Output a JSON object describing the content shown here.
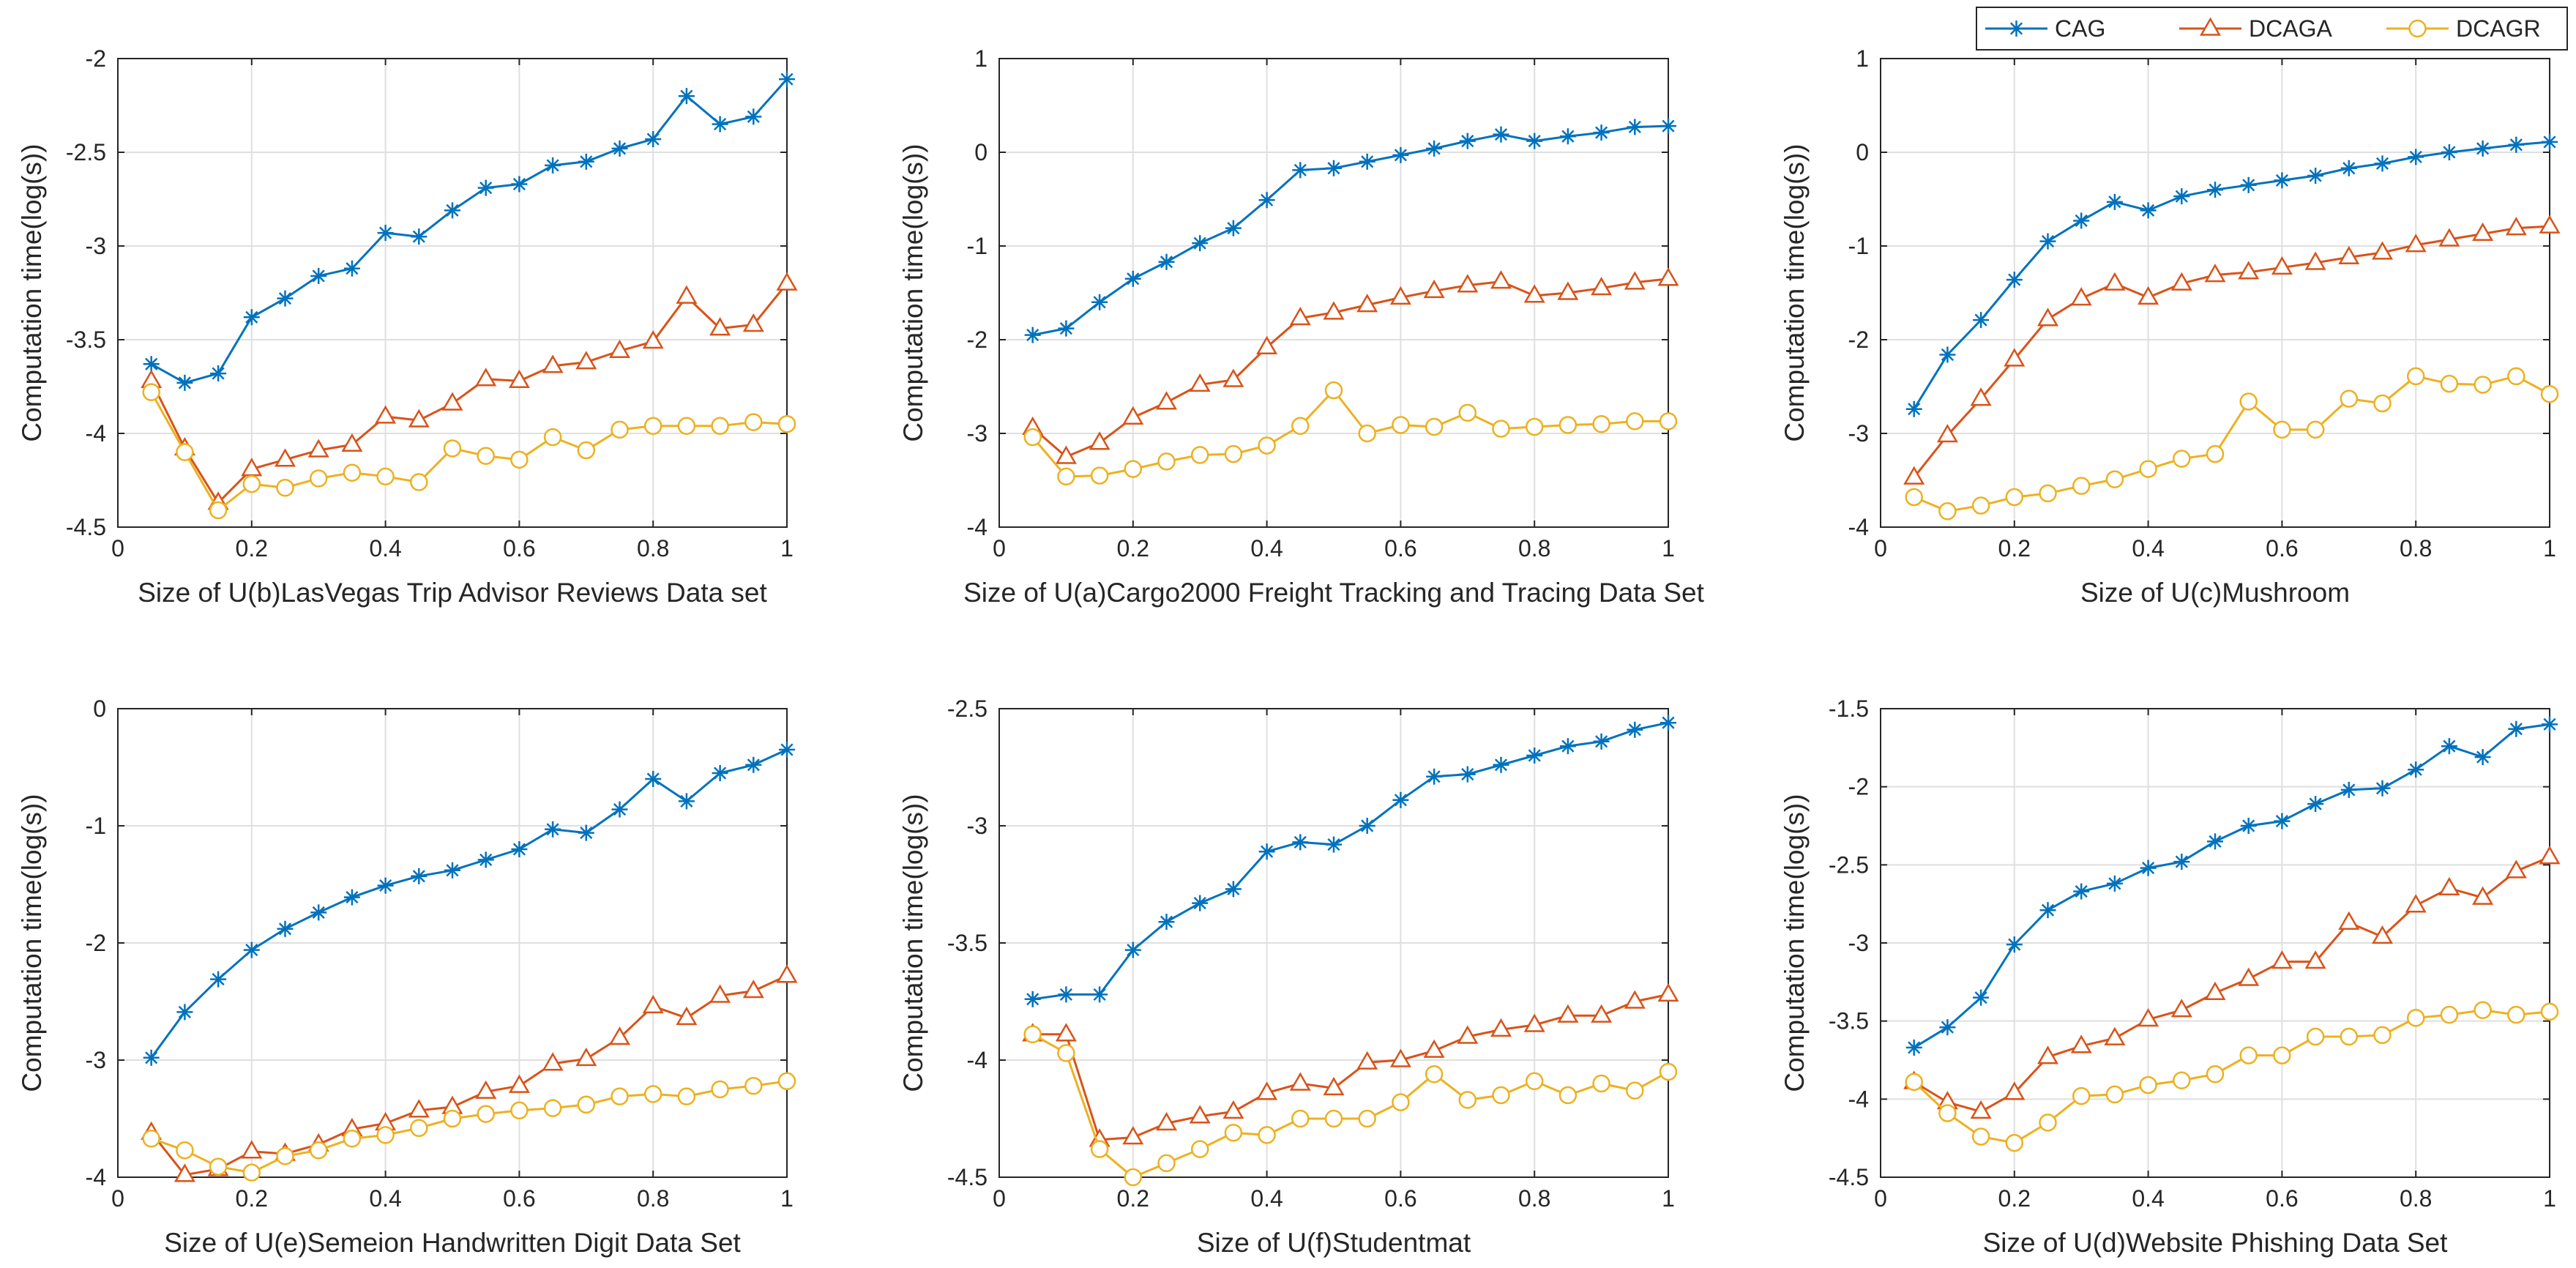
{
  "legend": {
    "entries": [
      {
        "name": "CAG",
        "color": "#0072BD",
        "marker": "asterisk"
      },
      {
        "name": "DCAGA",
        "color": "#D95319",
        "marker": "triangle"
      },
      {
        "name": "DCAGR",
        "color": "#EDB120",
        "marker": "circle"
      }
    ],
    "placement": "top-right"
  },
  "chart_data": [
    {
      "type": "line",
      "xlabel": "Size of U(b)LasVegas Trip Advisor Reviews Data set",
      "ylabel": "Computation time(log(s))",
      "xlim": [
        0,
        1
      ],
      "ylim": [
        -4.5,
        -2
      ],
      "xticks": [
        0,
        0.2,
        0.4,
        0.6,
        0.8,
        1
      ],
      "xtick_labels": [
        "0",
        "0.2",
        "0.4",
        "0.6",
        "0.8",
        "1"
      ],
      "yticks": [
        -4.5,
        -4,
        -3.5,
        -3,
        -2.5,
        -2
      ],
      "ytick_labels": [
        "-4.5",
        "-4",
        "-3.5",
        "-3",
        "-2.5",
        "-2"
      ],
      "x": [
        0.05,
        0.1,
        0.15,
        0.2,
        0.25,
        0.3,
        0.35,
        0.4,
        0.45,
        0.5,
        0.55,
        0.6,
        0.65,
        0.7,
        0.75,
        0.8,
        0.85,
        0.9,
        0.95,
        1.0
      ],
      "series": [
        {
          "name": "CAG",
          "values": [
            -3.63,
            -3.73,
            -3.68,
            -3.38,
            -3.28,
            -3.16,
            -3.12,
            -2.93,
            -2.95,
            -2.81,
            -2.69,
            -2.67,
            -2.57,
            -2.55,
            -2.48,
            -2.43,
            -2.2,
            -2.35,
            -2.31,
            -2.11
          ]
        },
        {
          "name": "DCAGA",
          "values": [
            -3.72,
            -4.08,
            -4.37,
            -4.19,
            -4.14,
            -4.09,
            -4.06,
            -3.91,
            -3.93,
            -3.84,
            -3.71,
            -3.72,
            -3.64,
            -3.62,
            -3.56,
            -3.51,
            -3.27,
            -3.44,
            -3.42,
            -3.2
          ]
        },
        {
          "name": "DCAGR",
          "values": [
            -3.78,
            -4.1,
            -4.41,
            -4.27,
            -4.29,
            -4.24,
            -4.21,
            -4.23,
            -4.26,
            -4.08,
            -4.12,
            -4.14,
            -4.02,
            -4.09,
            -3.98,
            -3.96,
            -3.96,
            -3.96,
            -3.94,
            -3.95
          ]
        }
      ]
    },
    {
      "type": "line",
      "xlabel": "Size of U(a)Cargo2000 Freight Tracking and Tracing Data Set",
      "ylabel": "Computation time(log(s))",
      "xlim": [
        0,
        1
      ],
      "ylim": [
        -4,
        1
      ],
      "xticks": [
        0,
        0.2,
        0.4,
        0.6,
        0.8,
        1
      ],
      "xtick_labels": [
        "0",
        "0.2",
        "0.4",
        "0.6",
        "0.8",
        "1"
      ],
      "yticks": [
        -4,
        -3,
        -2,
        -1,
        0,
        1
      ],
      "ytick_labels": [
        "-4",
        "-3",
        "-2",
        "-1",
        "0",
        "1"
      ],
      "x": [
        0.05,
        0.1,
        0.15,
        0.2,
        0.25,
        0.3,
        0.35,
        0.4,
        0.45,
        0.5,
        0.55,
        0.6,
        0.65,
        0.7,
        0.75,
        0.8,
        0.85,
        0.9,
        0.95,
        1.0
      ],
      "series": [
        {
          "name": "CAG",
          "values": [
            -1.95,
            -1.88,
            -1.6,
            -1.35,
            -1.17,
            -0.97,
            -0.81,
            -0.51,
            -0.19,
            -0.17,
            -0.1,
            -0.03,
            0.04,
            0.12,
            0.19,
            0.12,
            0.17,
            0.21,
            0.27,
            0.28
          ]
        },
        {
          "name": "DCAGA",
          "values": [
            -2.94,
            -3.25,
            -3.1,
            -2.83,
            -2.67,
            -2.48,
            -2.43,
            -2.08,
            -1.77,
            -1.71,
            -1.63,
            -1.55,
            -1.48,
            -1.42,
            -1.38,
            -1.53,
            -1.5,
            -1.45,
            -1.39,
            -1.35
          ]
        },
        {
          "name": "DCAGR",
          "values": [
            -3.04,
            -3.46,
            -3.45,
            -3.38,
            -3.3,
            -3.23,
            -3.22,
            -3.13,
            -2.92,
            -2.54,
            -3.0,
            -2.91,
            -2.93,
            -2.78,
            -2.95,
            -2.93,
            -2.91,
            -2.9,
            -2.87,
            -2.87
          ]
        }
      ]
    },
    {
      "type": "line",
      "xlabel": "Size of U(c)Mushroom",
      "ylabel": "Computation time(log(s))",
      "xlim": [
        0,
        1
      ],
      "ylim": [
        -4,
        1
      ],
      "xticks": [
        0,
        0.2,
        0.4,
        0.6,
        0.8,
        1
      ],
      "xtick_labels": [
        "0",
        "0.2",
        "0.4",
        "0.6",
        "0.8",
        "1"
      ],
      "yticks": [
        -4,
        -3,
        -2,
        -1,
        0,
        1
      ],
      "ytick_labels": [
        "-4",
        "-3",
        "-2",
        "-1",
        "0",
        "1"
      ],
      "x": [
        0.05,
        0.1,
        0.15,
        0.2,
        0.25,
        0.3,
        0.35,
        0.4,
        0.45,
        0.5,
        0.55,
        0.6,
        0.65,
        0.7,
        0.75,
        0.8,
        0.85,
        0.9,
        0.95,
        1.0
      ],
      "series": [
        {
          "name": "CAG",
          "values": [
            -2.74,
            -2.16,
            -1.79,
            -1.36,
            -0.95,
            -0.73,
            -0.53,
            -0.62,
            -0.47,
            -0.4,
            -0.35,
            -0.3,
            -0.25,
            -0.17,
            -0.12,
            -0.05,
            0.0,
            0.04,
            0.08,
            0.11
          ]
        },
        {
          "name": "DCAGA",
          "values": [
            -3.47,
            -3.02,
            -2.63,
            -2.21,
            -1.78,
            -1.56,
            -1.4,
            -1.55,
            -1.4,
            -1.31,
            -1.28,
            -1.23,
            -1.18,
            -1.12,
            -1.07,
            -0.99,
            -0.93,
            -0.87,
            -0.81,
            -0.79
          ]
        },
        {
          "name": "DCAGR",
          "values": [
            -3.68,
            -3.83,
            -3.77,
            -3.68,
            -3.64,
            -3.56,
            -3.49,
            -3.38,
            -3.27,
            -3.22,
            -2.66,
            -2.96,
            -2.96,
            -2.63,
            -2.68,
            -2.39,
            -2.47,
            -2.48,
            -2.39,
            -2.58
          ]
        }
      ]
    },
    {
      "type": "line",
      "xlabel": "Size of U(e)Semeion Handwritten Digit Data Set",
      "ylabel": "Computation time(log(s))",
      "xlim": [
        0,
        1
      ],
      "ylim": [
        -4,
        0
      ],
      "xticks": [
        0,
        0.2,
        0.4,
        0.6,
        0.8,
        1
      ],
      "xtick_labels": [
        "0",
        "0.2",
        "0.4",
        "0.6",
        "0.8",
        "1"
      ],
      "yticks": [
        -4,
        -3,
        -2,
        -1,
        0
      ],
      "ytick_labels": [
        "-4",
        "-3",
        "-2",
        "-1",
        "0"
      ],
      "x": [
        0.05,
        0.1,
        0.15,
        0.2,
        0.25,
        0.3,
        0.35,
        0.4,
        0.45,
        0.5,
        0.55,
        0.6,
        0.65,
        0.7,
        0.75,
        0.8,
        0.85,
        0.9,
        0.95,
        1.0
      ],
      "series": [
        {
          "name": "CAG",
          "values": [
            -2.98,
            -2.59,
            -2.31,
            -2.06,
            -1.88,
            -1.74,
            -1.61,
            -1.51,
            -1.43,
            -1.38,
            -1.29,
            -1.2,
            -1.03,
            -1.06,
            -0.86,
            -0.6,
            -0.79,
            -0.55,
            -0.48,
            -0.35
          ]
        },
        {
          "name": "DCAGA",
          "values": [
            -3.62,
            -3.98,
            -3.93,
            -3.78,
            -3.8,
            -3.72,
            -3.59,
            -3.54,
            -3.43,
            -3.4,
            -3.27,
            -3.22,
            -3.03,
            -2.99,
            -2.81,
            -2.54,
            -2.64,
            -2.45,
            -2.41,
            -2.28
          ]
        },
        {
          "name": "DCAGR",
          "values": [
            -3.67,
            -3.77,
            -3.91,
            -3.96,
            -3.82,
            -3.77,
            -3.67,
            -3.64,
            -3.58,
            -3.5,
            -3.46,
            -3.43,
            -3.41,
            -3.38,
            -3.31,
            -3.29,
            -3.31,
            -3.25,
            -3.22,
            -3.18
          ]
        }
      ]
    },
    {
      "type": "line",
      "xlabel": "Size of U(f)Studentmat",
      "ylabel": "Computation time(log(s))",
      "xlim": [
        0,
        1
      ],
      "ylim": [
        -4.5,
        -2.5
      ],
      "xticks": [
        0,
        0.2,
        0.4,
        0.6,
        0.8,
        1
      ],
      "xtick_labels": [
        "0",
        "0.2",
        "0.4",
        "0.6",
        "0.8",
        "1"
      ],
      "yticks": [
        -4.5,
        -4,
        -3.5,
        -3,
        -2.5
      ],
      "ytick_labels": [
        "-4.5",
        "-4",
        "-3.5",
        "-3",
        "-2.5"
      ],
      "x": [
        0.05,
        0.1,
        0.15,
        0.2,
        0.25,
        0.3,
        0.35,
        0.4,
        0.45,
        0.5,
        0.55,
        0.6,
        0.65,
        0.7,
        0.75,
        0.8,
        0.85,
        0.9,
        0.95,
        1.0
      ],
      "series": [
        {
          "name": "CAG",
          "values": [
            -3.74,
            -3.72,
            -3.72,
            -3.53,
            -3.41,
            -3.33,
            -3.27,
            -3.11,
            -3.07,
            -3.08,
            -3.0,
            -2.89,
            -2.79,
            -2.78,
            -2.74,
            -2.7,
            -2.66,
            -2.64,
            -2.59,
            -2.56
          ]
        },
        {
          "name": "DCAGA",
          "values": [
            -3.89,
            -3.89,
            -4.34,
            -4.33,
            -4.27,
            -4.24,
            -4.22,
            -4.14,
            -4.1,
            -4.12,
            -4.01,
            -4.0,
            -3.96,
            -3.9,
            -3.87,
            -3.85,
            -3.81,
            -3.81,
            -3.75,
            -3.72
          ]
        },
        {
          "name": "DCAGR",
          "values": [
            -3.89,
            -3.97,
            -4.38,
            -4.5,
            -4.44,
            -4.38,
            -4.31,
            -4.32,
            -4.25,
            -4.25,
            -4.25,
            -4.18,
            -4.06,
            -4.17,
            -4.15,
            -4.09,
            -4.15,
            -4.1,
            -4.13,
            -4.05
          ]
        }
      ]
    },
    {
      "type": "line",
      "xlabel": "Size of U(d)Website Phishing Data Set",
      "ylabel": "Computation time(log(s))",
      "xlim": [
        0,
        1
      ],
      "ylim": [
        -4.5,
        -1.5
      ],
      "xticks": [
        0,
        0.2,
        0.4,
        0.6,
        0.8,
        1
      ],
      "xtick_labels": [
        "0",
        "0.2",
        "0.4",
        "0.6",
        "0.8",
        "1"
      ],
      "yticks": [
        -4.5,
        -4,
        -3.5,
        -3,
        -2.5,
        -2,
        -1.5
      ],
      "ytick_labels": [
        "-4.5",
        "-4",
        "-3.5",
        "-3",
        "-2.5",
        "-2",
        "-1.5"
      ],
      "x": [
        0.05,
        0.1,
        0.15,
        0.2,
        0.25,
        0.3,
        0.35,
        0.4,
        0.45,
        0.5,
        0.55,
        0.6,
        0.65,
        0.7,
        0.75,
        0.8,
        0.85,
        0.9,
        0.95,
        1.0
      ],
      "series": [
        {
          "name": "CAG",
          "values": [
            -3.67,
            -3.54,
            -3.35,
            -3.01,
            -2.79,
            -2.67,
            -2.62,
            -2.52,
            -2.48,
            -2.35,
            -2.25,
            -2.22,
            -2.11,
            -2.02,
            -2.01,
            -1.89,
            -1.74,
            -1.81,
            -1.63,
            -1.6
          ]
        },
        {
          "name": "DCAGA",
          "values": [
            -3.89,
            -4.02,
            -4.08,
            -3.96,
            -3.73,
            -3.66,
            -3.61,
            -3.49,
            -3.43,
            -3.32,
            -3.23,
            -3.12,
            -3.12,
            -2.87,
            -2.96,
            -2.76,
            -2.65,
            -2.71,
            -2.54,
            -2.45
          ]
        },
        {
          "name": "DCAGR",
          "values": [
            -3.89,
            -4.09,
            -4.24,
            -4.28,
            -4.15,
            -3.98,
            -3.97,
            -3.91,
            -3.88,
            -3.84,
            -3.72,
            -3.72,
            -3.6,
            -3.6,
            -3.59,
            -3.48,
            -3.46,
            -3.43,
            -3.46,
            -3.44
          ]
        }
      ]
    }
  ]
}
